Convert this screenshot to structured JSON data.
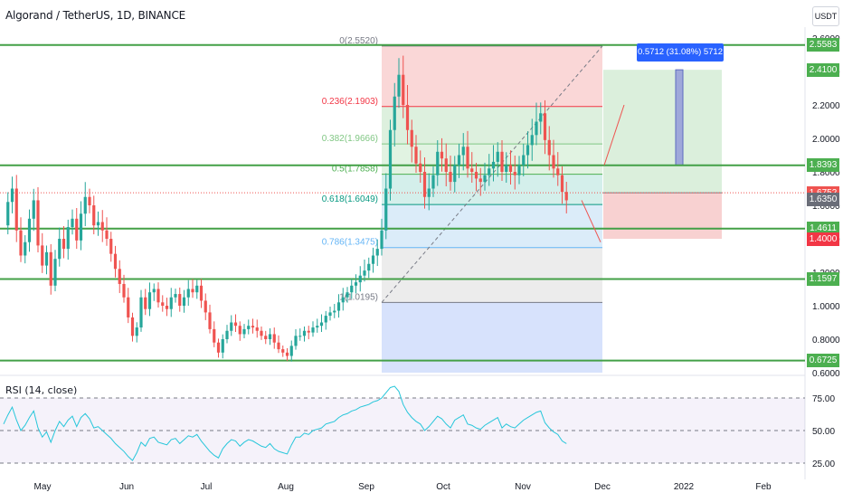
{
  "header": {
    "title": "Algorand / TetherUS, 1D, BINANCE",
    "currency": "USDT"
  },
  "rsi": {
    "title": "RSI (14, close)",
    "levels": [
      "75.00",
      "50.00",
      "25.00"
    ]
  },
  "chart_data": {
    "type": "candlestick",
    "symbol": "Algorand / TetherUS",
    "interval": "1D",
    "exchange": "BINANCE",
    "ylim": [
      0.6,
      2.6
    ],
    "y_ticks": [
      "2.6000",
      "2.4000",
      "2.2000",
      "2.0000",
      "1.8000",
      "1.6000",
      "1.4000",
      "1.2000",
      "1.0000",
      "0.8000",
      "0.6000"
    ],
    "x_ticks": [
      "May",
      "Jun",
      "Jul",
      "Aug",
      "Sep",
      "Oct",
      "Nov",
      "Dec",
      "2022",
      "Feb"
    ],
    "close_series": [
      1.48,
      1.62,
      1.7,
      1.45,
      1.3,
      1.38,
      1.52,
      1.63,
      1.36,
      1.24,
      1.32,
      1.12,
      1.28,
      1.4,
      1.34,
      1.47,
      1.52,
      1.39,
      1.55,
      1.65,
      1.6,
      1.48,
      1.5,
      1.45,
      1.4,
      1.31,
      1.22,
      1.13,
      1.05,
      0.93,
      0.82,
      0.87,
      1.05,
      0.98,
      1.08,
      1.1,
      1.02,
      1.0,
      0.98,
      1.05,
      1.07,
      1.0,
      1.05,
      1.1,
      1.08,
      1.12,
      1.03,
      0.96,
      0.86,
      0.78,
      0.72,
      0.8,
      0.85,
      0.9,
      0.88,
      0.83,
      0.86,
      0.88,
      0.87,
      0.85,
      0.82,
      0.8,
      0.83,
      0.78,
      0.74,
      0.72,
      0.7,
      0.76,
      0.82,
      0.82,
      0.85,
      0.84,
      0.87,
      0.88,
      0.9,
      0.94,
      0.96,
      0.97,
      1.02,
      1.05,
      1.08,
      1.12,
      1.14,
      1.18,
      1.21,
      1.25,
      1.3,
      1.34,
      1.45,
      1.7,
      2.05,
      2.25,
      2.38,
      2.2,
      2.05,
      1.95,
      1.85,
      1.8,
      1.65,
      1.7,
      1.78,
      1.92,
      1.88,
      1.8,
      1.74,
      1.84,
      1.9,
      1.95,
      1.82,
      1.8,
      1.76,
      1.74,
      1.78,
      1.82,
      1.86,
      1.92,
      1.8,
      1.84,
      1.8,
      1.78,
      1.84,
      1.9,
      1.96,
      2.02,
      2.1,
      2.15,
      1.99,
      1.9,
      1.82,
      1.78,
      1.68,
      1.63
    ],
    "series": [
      {
        "name": "",
        "close_series_ref": "close_series"
      }
    ],
    "price_levels": [
      {
        "value": 2.5583,
        "label": "2.5583",
        "color": "#4caf50"
      },
      {
        "value": 2.41,
        "label": "2.4100",
        "color": "#4caf50"
      },
      {
        "value": 1.8393,
        "label": "1.8393",
        "color": "#4caf50"
      },
      {
        "value": 1.6752,
        "label": "1.6752",
        "color": "#ef5350"
      },
      {
        "value": 1.635,
        "label": "1.6350",
        "color": "#6a6d78"
      },
      {
        "value": 1.4611,
        "label": "1.4611",
        "color": "#4caf50"
      },
      {
        "value": 1.4,
        "label": "1.4000",
        "color": "#f23645"
      },
      {
        "value": 1.1597,
        "label": "1.1597",
        "color": "#4caf50"
      },
      {
        "value": 0.6725,
        "label": "0.6725",
        "color": "#4caf50"
      }
    ],
    "horizontal_lines": [
      2.5583,
      1.8393,
      1.4611,
      1.1597,
      0.6725
    ],
    "fib_levels": [
      {
        "label": "0(2.5520)",
        "value": 2.552,
        "color": "#787b86"
      },
      {
        "label": "0.236(2.1903)",
        "value": 2.1903,
        "color": "#f23645"
      },
      {
        "label": "0.382(1.9666)",
        "value": 1.9666,
        "color": "#81c784"
      },
      {
        "label": "0.5(1.7858)",
        "value": 1.7858,
        "color": "#4caf50"
      },
      {
        "label": "0.618(1.6049)",
        "value": 1.6049,
        "color": "#089981"
      },
      {
        "label": "0.786(1.3475)",
        "value": 1.3475,
        "color": "#64b5f6"
      },
      {
        "label": "1(1.0195)",
        "value": 1.0195,
        "color": "#787b86"
      }
    ],
    "position": {
      "entry": 1.6752,
      "target": 2.41,
      "stop": 1.4,
      "measure_label": "0.5712 (31.08%) 5712"
    },
    "rsi_series": [
      55,
      62,
      68,
      58,
      50,
      54,
      60,
      65,
      52,
      45,
      49,
      41,
      50,
      57,
      53,
      58,
      61,
      53,
      60,
      63,
      59,
      52,
      53,
      50,
      47,
      44,
      40,
      37,
      34,
      30,
      27,
      33,
      41,
      38,
      44,
      45,
      41,
      40,
      39,
      43,
      44,
      40,
      43,
      46,
      45,
      47,
      42,
      38,
      34,
      31,
      29,
      36,
      40,
      43,
      42,
      38,
      41,
      43,
      42,
      40,
      38,
      37,
      40,
      36,
      34,
      33,
      32,
      39,
      45,
      45,
      48,
      47,
      50,
      51,
      52,
      55,
      56,
      57,
      60,
      62,
      63,
      65,
      66,
      68,
      69,
      70,
      72,
      73,
      75,
      79,
      83,
      84,
      80,
      70,
      64,
      60,
      57,
      55,
      50,
      53,
      57,
      61,
      59,
      55,
      52,
      58,
      60,
      62,
      55,
      54,
      52,
      51,
      54,
      56,
      58,
      60,
      52,
      55,
      53,
      52,
      55,
      58,
      60,
      62,
      64,
      65,
      56,
      52,
      49,
      47,
      42,
      40
    ]
  }
}
